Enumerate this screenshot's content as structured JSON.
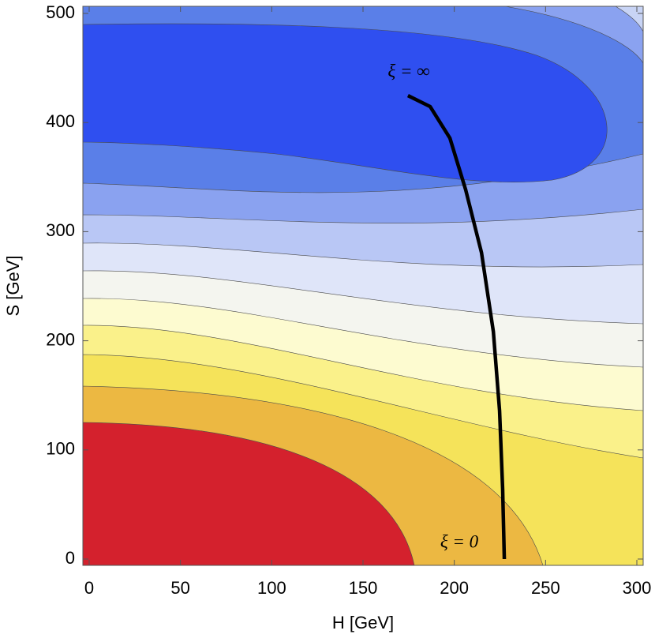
{
  "chart_data": {
    "type": "line",
    "xlabel": "H  [GeV]",
    "ylabel": "S  [GeV]",
    "xlim": [
      0,
      300
    ],
    "ylim": [
      0,
      500
    ],
    "xticks": [
      0,
      50,
      100,
      150,
      200,
      250,
      300
    ],
    "yticks": [
      0,
      100,
      200,
      300,
      400,
      500
    ],
    "x": [
      174.6,
      186.8,
      197.6,
      206.2,
      214.9,
      221.4,
      224.8,
      226.5,
      227.4
    ],
    "series": [
      {
        "color": "#000000",
        "values": [
          424.7,
          414.6,
          385.7,
          338.6,
          280.8,
          208.4,
          136,
          63.7,
          0
        ]
      }
    ],
    "annotations": [
      {
        "text": "ξ = ∞"
      },
      {
        "text": "ξ = 0"
      }
    ]
  }
}
